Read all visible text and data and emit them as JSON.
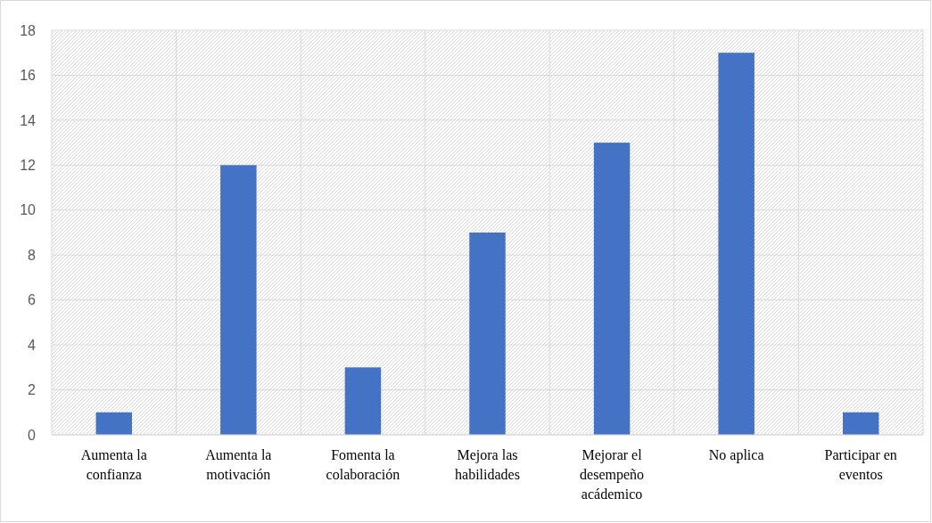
{
  "chart_data": {
    "type": "bar",
    "categories": [
      "Aumenta la confianza",
      "Aumenta la motivación",
      "Fomenta la colaboración",
      "Mejora las habilidades",
      "Mejorar el desempeño acádemico",
      "No aplica",
      "Participar en eventos"
    ],
    "values": [
      1,
      12,
      3,
      9,
      13,
      17,
      1
    ],
    "color": "#4472c4",
    "ylim": [
      0,
      18
    ],
    "yticks": [
      0,
      2,
      4,
      6,
      8,
      10,
      12,
      14,
      16,
      18
    ],
    "grid": true
  }
}
